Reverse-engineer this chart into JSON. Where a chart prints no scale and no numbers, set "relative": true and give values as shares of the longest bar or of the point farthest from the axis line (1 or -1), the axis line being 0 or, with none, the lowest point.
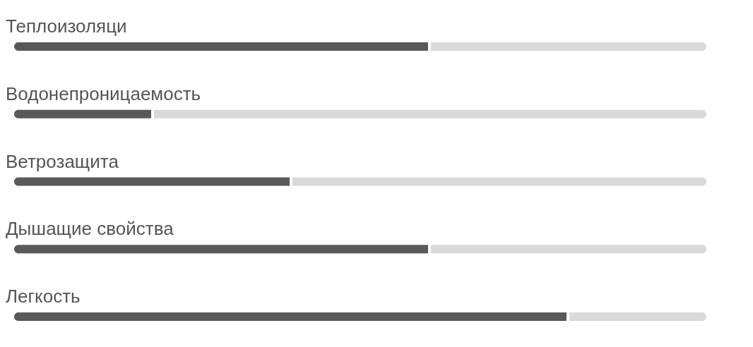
{
  "chart_data": {
    "type": "bar",
    "orientation": "horizontal",
    "stacked": true,
    "relative": true,
    "categories": [
      "Теплоизоляци",
      "Водонепроницаемость",
      "Ветрозащита",
      "Дышащие свойства",
      "Легкость"
    ],
    "series": [
      {
        "color": "#595959",
        "values": [
          0.6,
          0.2,
          0.4,
          0.6,
          0.8
        ]
      },
      {
        "color": "#d9d9d9",
        "values": [
          0.4,
          0.8,
          0.6,
          0.4,
          0.2
        ]
      }
    ]
  }
}
